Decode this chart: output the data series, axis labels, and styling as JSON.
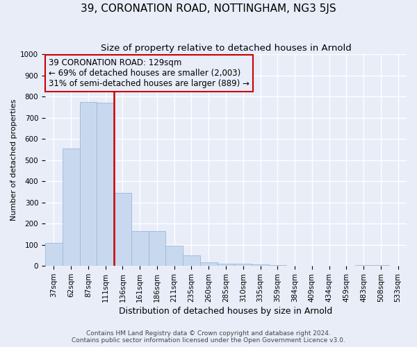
{
  "title": "39, CORONATION ROAD, NOTTINGHAM, NG3 5JS",
  "subtitle": "Size of property relative to detached houses in Arnold",
  "xlabel": "Distribution of detached houses by size in Arnold",
  "ylabel": "Number of detached properties",
  "categories": [
    "37sqm",
    "62sqm",
    "87sqm",
    "111sqm",
    "136sqm",
    "161sqm",
    "186sqm",
    "211sqm",
    "235sqm",
    "260sqm",
    "285sqm",
    "310sqm",
    "335sqm",
    "359sqm",
    "384sqm",
    "409sqm",
    "434sqm",
    "459sqm",
    "483sqm",
    "508sqm",
    "533sqm"
  ],
  "values": [
    110,
    555,
    775,
    770,
    345,
    163,
    163,
    95,
    50,
    18,
    12,
    10,
    7,
    3,
    1,
    0,
    0,
    0,
    5,
    3,
    0
  ],
  "bar_color": "#c8d9ef",
  "bar_edge_color": "#9ab8d8",
  "background_color": "#e8edf8",
  "grid_color": "#ffffff",
  "vline_color": "#cc0000",
  "vline_index": 4,
  "annotation_line1": "39 CORONATION ROAD: 129sqm",
  "annotation_line2": "← 69% of detached houses are smaller (2,003)",
  "annotation_line3": "31% of semi-detached houses are larger (889) →",
  "annotation_box_edgecolor": "#cc0000",
  "ylim": [
    0,
    1000
  ],
  "yticks": [
    0,
    100,
    200,
    300,
    400,
    500,
    600,
    700,
    800,
    900,
    1000
  ],
  "footnote_line1": "Contains HM Land Registry data © Crown copyright and database right 2024.",
  "footnote_line2": "Contains public sector information licensed under the Open Government Licence v3.0.",
  "title_fontsize": 11,
  "subtitle_fontsize": 9.5,
  "xlabel_fontsize": 9,
  "ylabel_fontsize": 8,
  "tick_fontsize": 7.5,
  "annotation_fontsize": 8.5,
  "footnote_fontsize": 6.5
}
